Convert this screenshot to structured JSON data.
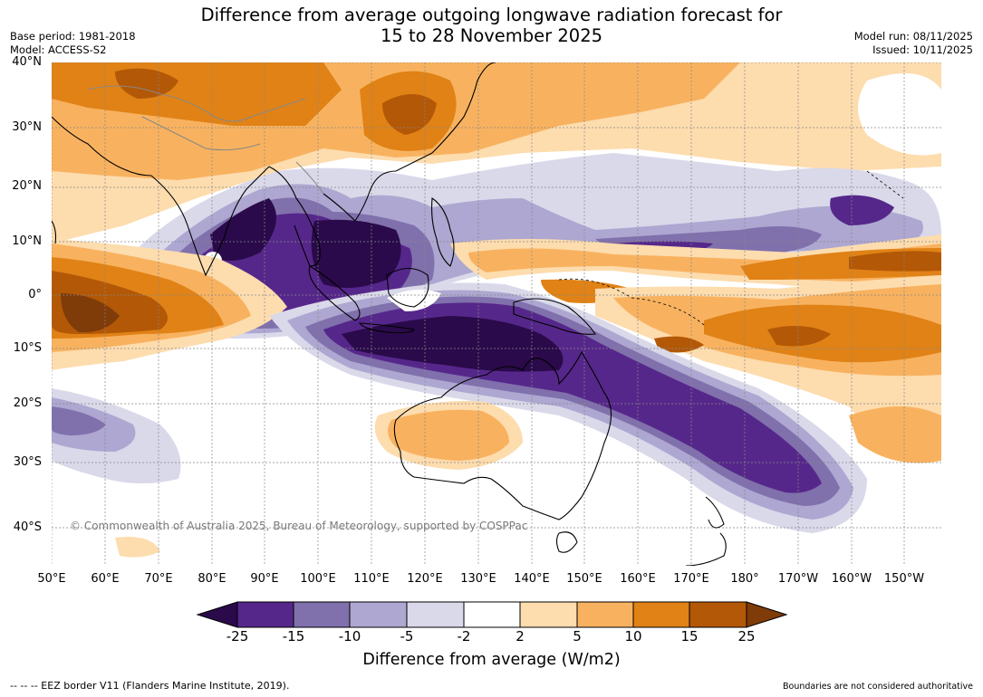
{
  "title": {
    "line1": "Difference from average outgoing longwave radiation forecast for",
    "line2": "15 to 28 November 2025"
  },
  "meta_left": {
    "base_period": "Base period: 1981-2018",
    "model": "Model: ACCESS-S2"
  },
  "meta_right": {
    "model_run": "Model run: 08/11/2025",
    "issued": "Issued: 10/11/2025"
  },
  "lat_labels": [
    "40°N",
    "30°N",
    "20°N",
    "10°N",
    "0°",
    "10°S",
    "20°S",
    "30°S",
    "40°S"
  ],
  "lon_labels": [
    "50°E",
    "60°E",
    "70°E",
    "80°E",
    "90°E",
    "100°E",
    "110°E",
    "120°E",
    "130°E",
    "140°E",
    "150°E",
    "160°E",
    "170°E",
    "180°",
    "170°W",
    "160°W",
    "150°W"
  ],
  "copyright": "© Commonwealth of Australia 2025, Bureau of Meteorology, supported by COSPPac",
  "colorbar": {
    "ticks": [
      "-25",
      "-15",
      "-10",
      "-5",
      "-2",
      "2",
      "5",
      "10",
      "15",
      "25"
    ],
    "colors": [
      "#2a0a4a",
      "#56278a",
      "#8070ac",
      "#ada7d1",
      "#d9d9ea",
      "#ffffff",
      "#fddcae",
      "#f8b25f",
      "#e08216",
      "#b35806",
      "#7f3b08"
    ],
    "label": "Difference from average (W/m2)"
  },
  "footer": {
    "eez": "--  --  -- EEZ border V11 (Flanders Marine Institute, 2019).",
    "disclaimer": "Boundaries are not considered authoritative"
  }
}
